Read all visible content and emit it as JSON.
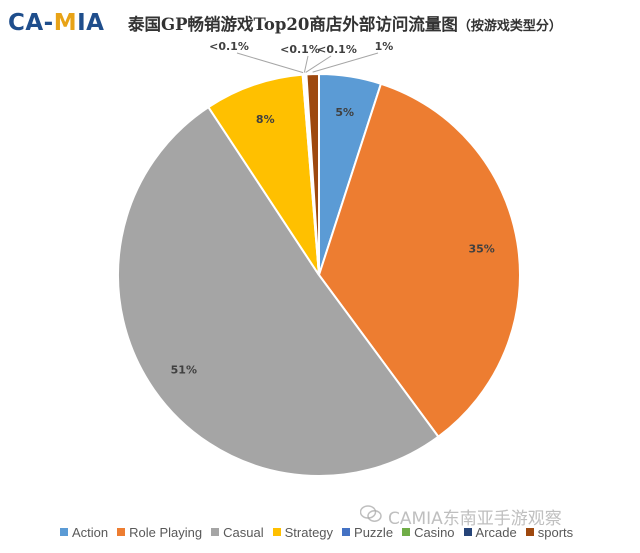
{
  "header": {
    "logo_text": "CA-MIA",
    "title": "泰国GP畅销游戏Top20商店外部访问流量图",
    "subtitle": "（按游戏类型分）"
  },
  "watermark": {
    "text": "CAMIA东南亚手游观察",
    "icon": "wechat-icon"
  },
  "chart_data": {
    "type": "pie",
    "title": "泰国GP畅销游戏Top20商店外部访问流量图（按游戏类型分）",
    "legend_position": "bottom",
    "slices": [
      {
        "name": "Action",
        "value": 5,
        "label": "5%",
        "color": "#5b9bd5"
      },
      {
        "name": "Role Playing",
        "value": 35,
        "label": "35%",
        "color": "#ed7d31"
      },
      {
        "name": "Casual",
        "value": 51,
        "label": "51%",
        "color": "#a5a5a5"
      },
      {
        "name": "Strategy",
        "value": 8,
        "label": "8%",
        "color": "#ffc000"
      },
      {
        "name": "Puzzle",
        "value": 0.1,
        "label": "<0.1%",
        "color": "#4472c4"
      },
      {
        "name": "Casino",
        "value": 0.1,
        "label": "<0.1%",
        "color": "#70ad47"
      },
      {
        "name": "Arcade",
        "value": 0.1,
        "label": "<0.1%",
        "color": "#264478"
      },
      {
        "name": "sports",
        "value": 1,
        "label": "1%",
        "color": "#9e480e"
      }
    ]
  }
}
